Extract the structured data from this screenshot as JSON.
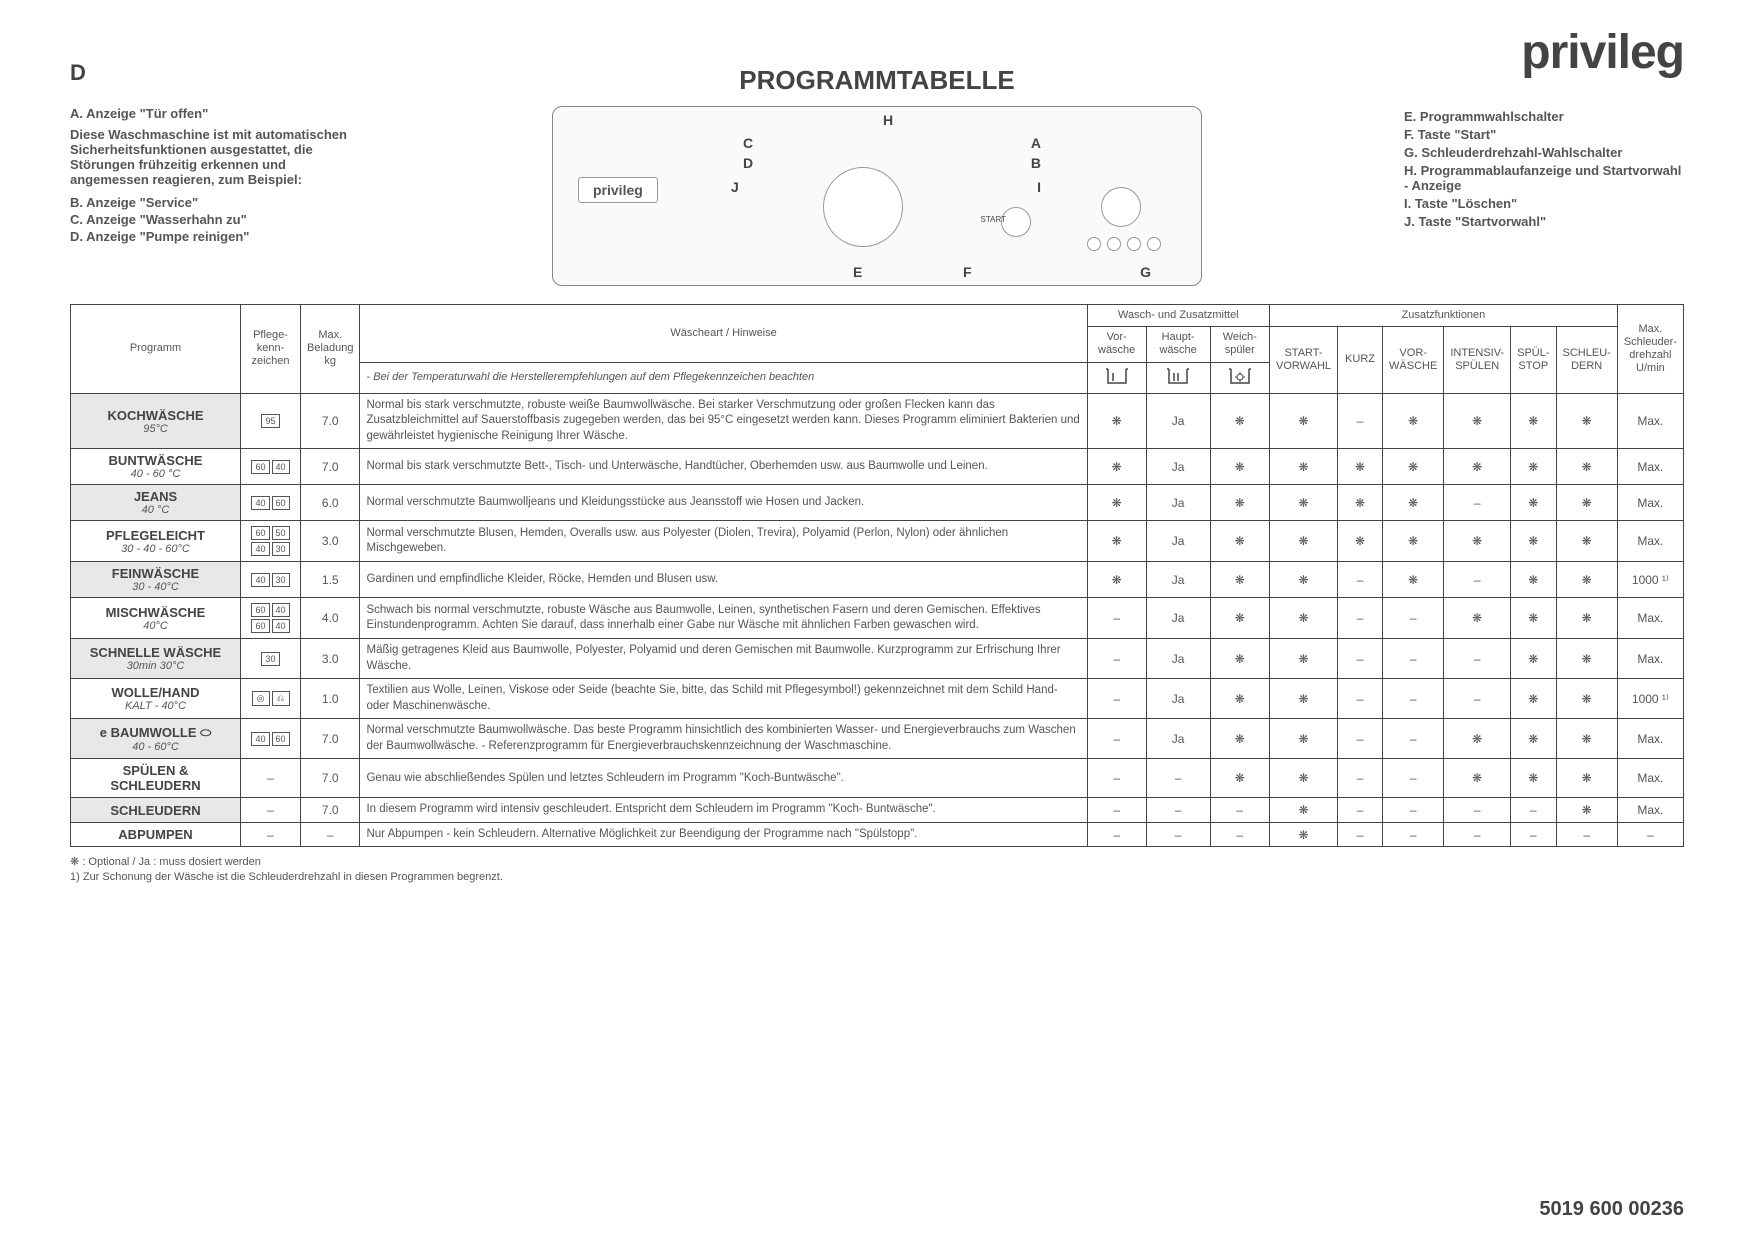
{
  "brand": "privileg",
  "lang_marker": "D",
  "title": "PROGRAMMTABELLE",
  "doc_number": "5019 600 00236",
  "left_notes": {
    "heading": "A. Anzeige \"Tür offen\"",
    "intro": "Diese Waschmaschine ist mit automatischen Sicherheitsfunktionen ausgestattet, die Störungen frühzeitig erkennen und angemessen reagieren, zum Beispiel:",
    "items": [
      "B. Anzeige \"Service\"",
      "C. Anzeige \"Wasserhahn zu\"",
      "D. Anzeige \"Pumpe reinigen\""
    ]
  },
  "right_notes": {
    "items": [
      "E. Programmwahlschalter",
      "F. Taste \"Start\"",
      "G. Schleuderdrehzahl-Wahlschalter",
      "H. Programmablaufanzeige und Startvorwahl - Anzeige",
      "I. Taste \"Löschen\"",
      "J. Taste \"Startvorwahl\""
    ]
  },
  "diagram_labels": {
    "A": "A",
    "B": "B",
    "C": "C",
    "D": "D",
    "E": "E",
    "F": "F",
    "G": "G",
    "H": "H",
    "I": "I",
    "J": "J",
    "start": "START"
  },
  "table": {
    "header": {
      "programm": "Programm",
      "pflege": "Pflege-\nkenn-\nzeichen",
      "max_bel": "Max.\nBeladung\nkg",
      "wart": "Wäscheart / Hinweise",
      "wart_sub": "- Bei der Temperaturwahl die Herstellerempfehlungen auf dem Pflegekennzeichen beachten",
      "wasch_group": "Wasch- und Zusatzmittel",
      "vor": "Vor-\nwäsche",
      "haupt": "Haupt-\nwäsche",
      "weich": "Weich-\nspüler",
      "zusatz_group": "Zusatzfunktionen",
      "start_vorw": "START-\nVORWAHL",
      "kurz": "KURZ",
      "vorwasche": "VOR-\nWÄSCHE",
      "intensiv": "INTENSIV-\nSPÜLEN",
      "spuelstop": "SPÜL-\nSTOP",
      "schleudern": "SCHLEU-\nDERN",
      "max_dreh": "Max.\nSchleuder-\ndrehzahl\nU/min"
    },
    "rows": [
      {
        "name": "KOCHWÄSCHE",
        "sub": "95°C",
        "care": [
          "95"
        ],
        "beladung": "7.0",
        "hint": "Normal bis stark verschmutzte, robuste weiße Baumwollwäsche. Bei starker Verschmutzung oder großen Flecken kann das Zusatzbleichmittel auf Sauerstoffbasis zugegeben werden, das bei 95°C eingesetzt werden kann. Dieses Programm eliminiert Bakterien und gewährleistet hygienische Reinigung Ihrer Wäsche.",
        "vor": "❋",
        "haupt": "Ja",
        "weich": "❋",
        "f": [
          "❋",
          "–",
          "❋",
          "❋",
          "❋",
          "❋"
        ],
        "dreh": "Max."
      },
      {
        "name": "BUNTWÄSCHE",
        "sub": "40 - 60 °C",
        "care": [
          "60",
          "40"
        ],
        "beladung": "7.0",
        "hint": "Normal bis stark verschmutzte Bett-, Tisch- und Unterwäsche, Handtücher, Oberhemden usw. aus Baumwolle und Leinen.",
        "vor": "❋",
        "haupt": "Ja",
        "weich": "❋",
        "f": [
          "❋",
          "❋",
          "❋",
          "❋",
          "❋",
          "❋"
        ],
        "dreh": "Max."
      },
      {
        "name": "JEANS",
        "sub": "40 °C",
        "care": [
          "40",
          "60"
        ],
        "beladung": "6.0",
        "hint": "Normal verschmutzte Baumwolljeans und Kleidungsstücke aus Jeansstoff wie Hosen und Jacken.",
        "vor": "❋",
        "haupt": "Ja",
        "weich": "❋",
        "f": [
          "❋",
          "❋",
          "❋",
          "–",
          "❋",
          "❋"
        ],
        "dreh": "Max."
      },
      {
        "name": "PFLEGELEICHT",
        "sub": "30 - 40 - 60°C",
        "care": [
          "60",
          "50",
          "40",
          "30"
        ],
        "beladung": "3.0",
        "hint": "Normal verschmutzte Blusen, Hemden, Overalls usw. aus Polyester (Diolen, Trevira), Polyamid (Perlon, Nylon) oder ähnlichen Mischgeweben.",
        "vor": "❋",
        "haupt": "Ja",
        "weich": "❋",
        "f": [
          "❋",
          "❋",
          "❋",
          "❋",
          "❋",
          "❋"
        ],
        "dreh": "Max."
      },
      {
        "name": "FEINWÄSCHE",
        "sub": "30 - 40°C",
        "care": [
          "40",
          "30"
        ],
        "beladung": "1.5",
        "hint": "Gardinen und empfindliche Kleider, Röcke, Hemden und Blusen usw.",
        "vor": "❋",
        "haupt": "Ja",
        "weich": "❋",
        "f": [
          "❋",
          "–",
          "❋",
          "–",
          "❋",
          "❋"
        ],
        "dreh": "1000 ¹⁾"
      },
      {
        "name": "MISCHWÄSCHE",
        "sub": "40°C",
        "care": [
          "60",
          "40",
          "60",
          "40"
        ],
        "beladung": "4.0",
        "hint": "Schwach bis normal verschmutzte, robuste Wäsche aus Baumwolle, Leinen, synthetischen Fasern und deren Gemischen. Effektives Einstundenprogramm. Achten Sie darauf, dass innerhalb einer Gabe nur Wäsche mit ähnlichen Farben gewaschen wird.",
        "vor": "–",
        "haupt": "Ja",
        "weich": "❋",
        "f": [
          "❋",
          "–",
          "–",
          "❋",
          "❋",
          "❋"
        ],
        "dreh": "Max."
      },
      {
        "name": "SCHNELLE WÄSCHE",
        "sub": "30min    30°C",
        "care": [
          "30"
        ],
        "beladung": "3.0",
        "hint": "Mäßig getragenes Kleid aus Baumwolle, Polyester, Polyamid und deren Gemischen mit Baumwolle. Kurzprogramm zur Erfrischung Ihrer Wäsche.",
        "vor": "–",
        "haupt": "Ja",
        "weich": "❋",
        "f": [
          "❋",
          "–",
          "–",
          "–",
          "❋",
          "❋"
        ],
        "dreh": "Max."
      },
      {
        "name": "WOLLE/HAND",
        "sub": "KALT - 40°C",
        "care": [
          "◎",
          "⎌"
        ],
        "beladung": "1.0",
        "hint": "Textilien aus Wolle, Leinen, Viskose oder Seide (beachte Sie, bitte, das Schild mit Pflegesymbol!) gekennzeichnet mit dem Schild Hand- oder Maschinenwäsche.",
        "vor": "–",
        "haupt": "Ja",
        "weich": "❋",
        "f": [
          "❋",
          "–",
          "–",
          "–",
          "❋",
          "❋"
        ],
        "dreh": "1000 ¹⁾"
      },
      {
        "name": "e  BAUMWOLLE  ⬭",
        "sub": "40 - 60°C",
        "care": [
          "40",
          "60"
        ],
        "beladung": "7.0",
        "hint": "Normal verschmutzte Baumwollwäsche. Das beste Programm hinsichtlich des kombinierten Wasser- und Energieverbrauchs zum Waschen der Baumwollwäsche. - Referenzprogramm für Energieverbrauchskennzeichnung der Waschmaschine.",
        "vor": "–",
        "haupt": "Ja",
        "weich": "❋",
        "f": [
          "❋",
          "–",
          "–",
          "❋",
          "❋",
          "❋"
        ],
        "dreh": "Max."
      },
      {
        "name": "SPÜLEN & SCHLEUDERN",
        "sub": "",
        "care": [
          "–"
        ],
        "beladung": "7.0",
        "hint": "Genau wie abschließendes Spülen und letztes Schleudern im Programm \"Koch-Buntwäsche\".",
        "vor": "–",
        "haupt": "–",
        "weich": "❋",
        "f": [
          "❋",
          "–",
          "–",
          "❋",
          "❋",
          "❋"
        ],
        "dreh": "Max."
      },
      {
        "name": "SCHLEUDERN",
        "sub": "",
        "care": [
          "–"
        ],
        "beladung": "7.0",
        "hint": "In diesem Programm wird intensiv geschleudert. Entspricht dem Schleudern im Programm \"Koch- Buntwäsche\".",
        "vor": "–",
        "haupt": "–",
        "weich": "–",
        "f": [
          "❋",
          "–",
          "–",
          "–",
          "–",
          "❋"
        ],
        "dreh": "Max."
      },
      {
        "name": "ABPUMPEN",
        "sub": "",
        "care": [
          "–"
        ],
        "beladung": "–",
        "hint": "Nur Abpumpen - kein Schleudern. Alternative Möglichkeit zur Beendigung der Programme nach \"Spülstopp\".",
        "vor": "–",
        "haupt": "–",
        "weich": "–",
        "f": [
          "❋",
          "–",
          "–",
          "–",
          "–",
          "–"
        ],
        "dreh": "–"
      }
    ]
  },
  "footnotes": {
    "symbol": "❋ :",
    "line1": "Optional / Ja : muss dosiert werden",
    "num": "1)",
    "line2": "Zur Schonung der Wäsche ist die Schleuderdrehzahl in diesen Programmen begrenzt."
  },
  "colors": {
    "text": "#555555",
    "border": "#444444",
    "row_shade": "#e8e8e8",
    "bg": "#ffffff"
  }
}
